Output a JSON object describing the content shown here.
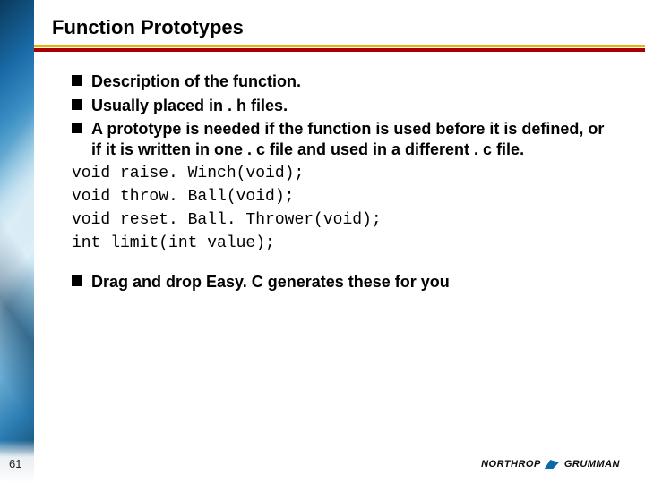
{
  "slide": {
    "title": "Function Prototypes",
    "title_fontsize": 22,
    "title_color": "#000000",
    "accent_line_color": "#a80000",
    "bullets_top": [
      "Description of the function.",
      "Usually placed in . h files.",
      "A prototype is needed if the function is used before it is defined, or if it is written in one . c file and used in a different . c file."
    ],
    "bullet_fontsize": 18,
    "code_lines": [
      "void raise. Winch(void);",
      "void throw. Ball(void);",
      "void reset. Ball. Thrower(void);",
      "int limit(int value);"
    ],
    "code_fontsize": 18,
    "bullets_bottom": [
      "Drag and drop Easy. C generates these for you"
    ],
    "page_number": "61",
    "logo_text_1": "NORTHROP",
    "logo_text_2": "GRUMMAN"
  }
}
